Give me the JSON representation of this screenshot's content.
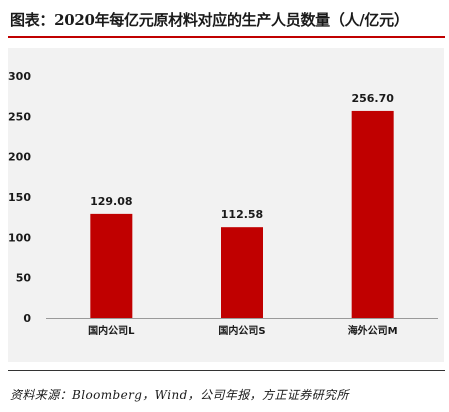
{
  "header": {
    "title": "图表：2020年每亿元原材料对应的生产人员数量（人/亿元）"
  },
  "footer": {
    "source": "资料来源：Bloomberg，Wind，公司年报，方正证券研究所"
  },
  "colors": {
    "bar": "#c00000",
    "title_rule": "#c00000",
    "plot_background": "#f2f2f2"
  },
  "chart_data": {
    "type": "bar",
    "title": "",
    "xlabel": "",
    "ylabel": "",
    "categories": [
      "国内公司L",
      "国内公司S",
      "海外公司M"
    ],
    "values": [
      129.08,
      112.58,
      256.7
    ],
    "data_labels": [
      "129.08",
      "112.58",
      "256.70"
    ],
    "ylim": [
      0,
      300
    ],
    "y_ticks": [
      "0",
      "50",
      "100",
      "150",
      "200",
      "250",
      "300"
    ],
    "grid": false,
    "legend": "none"
  }
}
